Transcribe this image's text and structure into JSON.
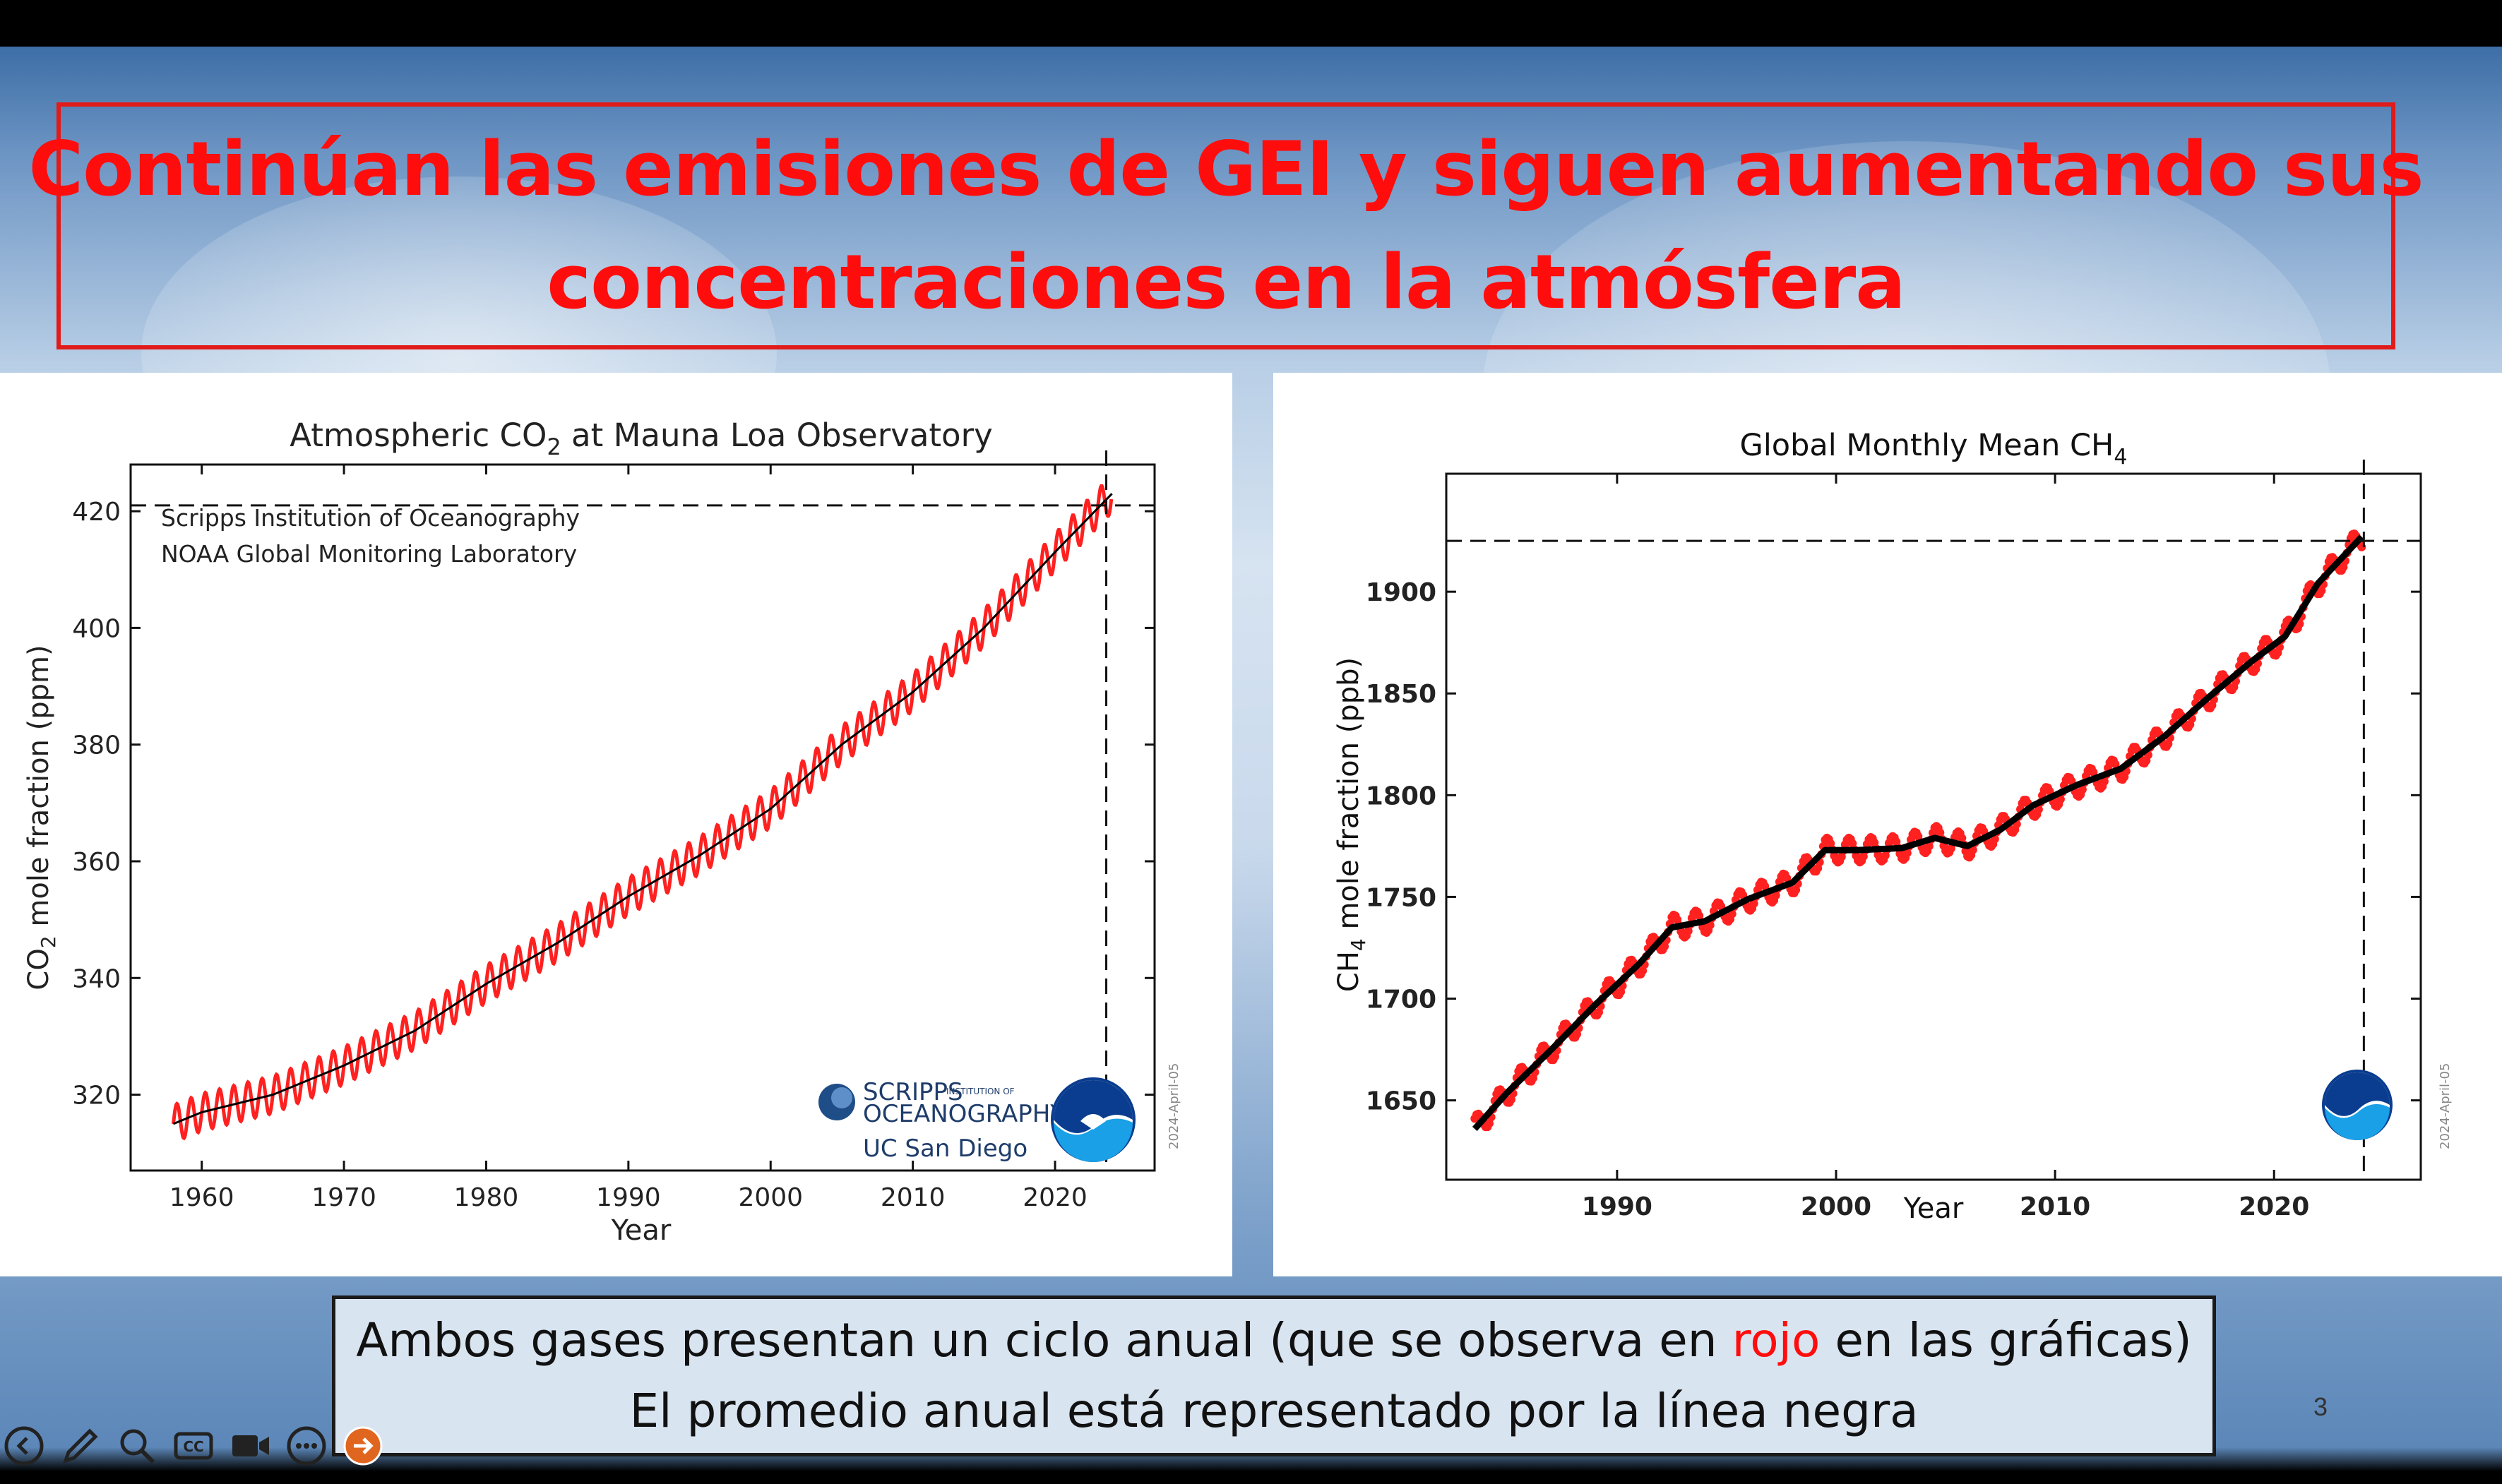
{
  "slide": {
    "title_line1": "Continúan las emisiones de GEI y siguen aumentando sus",
    "title_line2": "concentraciones en la atmósfera",
    "caption_line1_a": "Ambos gases presentan un ciclo anual (que se observa en ",
    "caption_line1_red": "rojo",
    "caption_line1_b": " en las gráficas)",
    "caption_line2": "El promedio anual está representado por la línea negra",
    "page_number": "3",
    "colors": {
      "title": "#ff0d0d",
      "cycle": "#ff2020",
      "mean": "#000000"
    }
  },
  "toolbar": {
    "icons": [
      "back-arrow-icon",
      "pen-icon",
      "zoom-icon",
      "closed-captions-icon",
      "camera-icon",
      "more-options-icon",
      "next-arrow-icon"
    ],
    "cc_label": "CC"
  },
  "chart_data": [
    {
      "type": "line",
      "title_pre": "Atmospheric CO",
      "title_sub": "2",
      "title_post": " at Mauna Loa Observatory",
      "xlabel": "Year",
      "ylabel_pre": "CO",
      "ylabel_sub": "2",
      "ylabel_post": " mole fraction (ppm)",
      "xlim": [
        1955,
        2027
      ],
      "ylim": [
        307,
        428
      ],
      "xticks": [
        1960,
        1970,
        1980,
        1990,
        2000,
        2010,
        2020
      ],
      "yticks": [
        320,
        340,
        360,
        380,
        400,
        420
      ],
      "annotations": [
        "Scripps Institution of Oceanography",
        "NOAA Global Monitoring Laboratory"
      ],
      "logo_text": [
        "SCRIPPS",
        "INSTITUTION OF",
        "OCEANOGRAPHY",
        "UC San Diego"
      ],
      "date_stamp": "2024-April-05",
      "reference_lines": {
        "x": 2023.6,
        "y": 421
      },
      "seasonal_amplitude": 3.2,
      "series": [
        {
          "name": "",
          "style": "monthly (red)",
          "x": [
            1958,
            1960,
            1965,
            1970,
            1975,
            1980,
            1985,
            1990,
            1995,
            2000,
            2005,
            2010,
            2015,
            2020,
            2024
          ],
          "values": [
            315,
            317,
            320,
            325,
            331,
            339,
            346,
            354,
            361,
            369,
            380,
            389,
            400,
            413,
            423
          ]
        },
        {
          "name": "",
          "style": "annual mean (black)",
          "x": [
            1958,
            1960,
            1965,
            1970,
            1975,
            1980,
            1985,
            1990,
            1995,
            2000,
            2005,
            2010,
            2015,
            2020,
            2024
          ],
          "values": [
            315,
            317,
            320,
            325,
            331,
            339,
            346,
            354,
            361,
            369,
            380,
            389,
            400,
            413,
            423
          ]
        }
      ]
    },
    {
      "type": "line",
      "title_pre": "Global Monthly Mean CH",
      "title_sub": "4",
      "title_post": "",
      "xlabel": "Year",
      "ylabel_pre": "CH",
      "ylabel_sub": "4",
      "ylabel_post": " mole fraction (ppb)",
      "xlim": [
        1982.2,
        2026.7
      ],
      "ylim": [
        1611,
        1958
      ],
      "xticks": [
        1990,
        2000,
        2010,
        2020
      ],
      "yticks": [
        1650,
        1700,
        1750,
        1800,
        1850,
        1900
      ],
      "date_stamp": "2024-April-05",
      "reference_lines": {
        "x": 2024.1,
        "y": 1925
      },
      "seasonal_amplitude": 6,
      "series": [
        {
          "name": "",
          "style": "monthly (red points)",
          "x": [
            1983.5,
            1985,
            1987,
            1989,
            1991,
            1992.5,
            1994,
            1996,
            1998,
            1999.5,
            2001,
            2003,
            2004.5,
            2006,
            2007.5,
            2009,
            2011,
            2013,
            2015,
            2017,
            2019,
            2020.5,
            2022,
            2024
          ],
          "values": [
            1636,
            1654,
            1675,
            1697,
            1717,
            1735,
            1738,
            1749,
            1757,
            1773,
            1773,
            1774,
            1779,
            1775,
            1783,
            1795,
            1805,
            1813,
            1829,
            1848,
            1866,
            1878,
            1904,
            1927
          ]
        },
        {
          "name": "",
          "style": "annual mean (black)",
          "x": [
            1983.5,
            1985,
            1987,
            1989,
            1991,
            1992.5,
            1994,
            1996,
            1998,
            1999.5,
            2001,
            2003,
            2004.5,
            2006,
            2007.5,
            2009,
            2011,
            2013,
            2015,
            2017,
            2019,
            2020.5,
            2022,
            2024
          ],
          "values": [
            1636,
            1654,
            1675,
            1697,
            1717,
            1735,
            1738,
            1749,
            1757,
            1773,
            1773,
            1774,
            1779,
            1775,
            1783,
            1795,
            1805,
            1813,
            1829,
            1848,
            1866,
            1878,
            1904,
            1927
          ]
        }
      ]
    }
  ]
}
